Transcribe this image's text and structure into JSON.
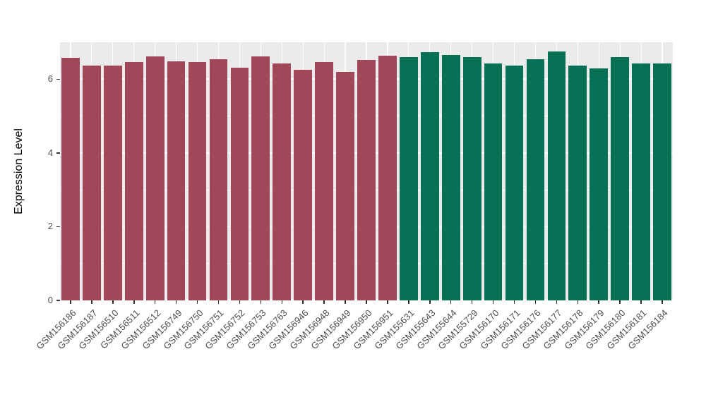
{
  "chart_data": {
    "type": "bar",
    "title": "",
    "xlabel": "",
    "ylabel": "Expression Level",
    "ylim": [
      0,
      7
    ],
    "yticks": [
      0,
      2,
      4,
      6
    ],
    "minor_yticks": [
      1,
      3,
      5
    ],
    "legend": "none",
    "grid": "on",
    "categories": [
      "GSM156186",
      "GSM156187",
      "GSM156510",
      "GSM156511",
      "GSM156512",
      "GSM156749",
      "GSM156750",
      "GSM156751",
      "GSM156752",
      "GSM156753",
      "GSM156763",
      "GSM156946",
      "GSM156948",
      "GSM156949",
      "GSM156950",
      "GSM156951",
      "GSM155631",
      "GSM155643",
      "GSM155644",
      "GSM155729",
      "GSM156170",
      "GSM156171",
      "GSM156176",
      "GSM156177",
      "GSM156178",
      "GSM156179",
      "GSM156180",
      "GSM156181",
      "GSM156184"
    ],
    "values": [
      6.57,
      6.37,
      6.37,
      6.46,
      6.61,
      6.48,
      6.47,
      6.55,
      6.32,
      6.62,
      6.42,
      6.26,
      6.46,
      6.2,
      6.53,
      6.63,
      6.59,
      6.73,
      6.66,
      6.59,
      6.43,
      6.37,
      6.54,
      6.76,
      6.36,
      6.3,
      6.59,
      6.43,
      6.42
    ],
    "bar_groups": [
      0,
      0,
      0,
      0,
      0,
      0,
      0,
      0,
      0,
      0,
      0,
      0,
      0,
      0,
      0,
      0,
      1,
      1,
      1,
      1,
      1,
      1,
      1,
      1,
      1,
      1,
      1,
      1,
      1
    ],
    "group_colors": [
      "#A0485A",
      "#077155"
    ],
    "panel_background": "#EBEBEB",
    "gridline_color": "#FFFFFF",
    "tick_label_color": "#4D4D4D",
    "axis_title_color": "#000000"
  }
}
